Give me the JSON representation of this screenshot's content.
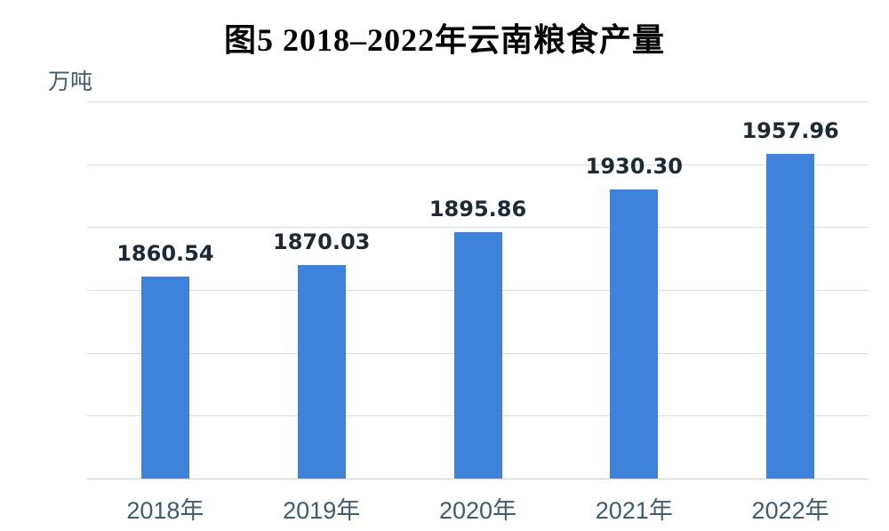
{
  "page": {
    "background": "#ffffff"
  },
  "chart_data": {
    "type": "bar",
    "title": "图5  2018–2022年云南粮食产量",
    "unit_label": "万吨",
    "categories": [
      "2018年",
      "2019年",
      "2020年",
      "2021年",
      "2022年"
    ],
    "values": [
      1860.54,
      1870.03,
      1895.86,
      1930.3,
      1957.96
    ],
    "value_labels": [
      "1860.54",
      "1870.03",
      "1895.86",
      "1930.30",
      "1957.96"
    ],
    "xlabel": "",
    "ylabel": "万吨",
    "ylim": [
      1700,
      2000
    ],
    "grid_step": 50,
    "grid": true,
    "y_tick_labels_visible": false,
    "legend": false,
    "colors": {
      "bar": "#3f82dc",
      "gridline": "#d9dfe2",
      "axis_line": "#ccd4d9",
      "title": "#000000",
      "value_label": "#1e2a33",
      "tick_label": "#3e5d6d"
    }
  }
}
